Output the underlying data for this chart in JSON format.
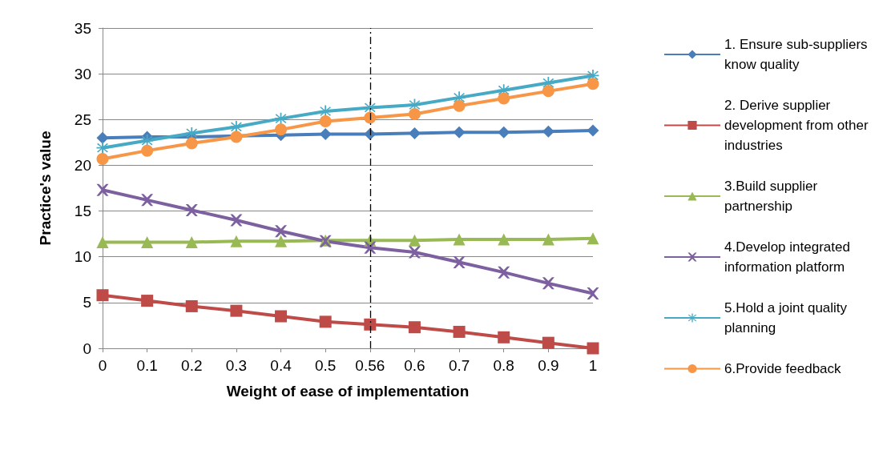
{
  "chart_data": {
    "type": "line",
    "xlabel": "Weight of ease of implementation",
    "ylabel": "Practice's value",
    "categories": [
      "0",
      "0.1",
      "0.2",
      "0.3",
      "0.4",
      "0.5",
      "0.56",
      "0.6",
      "0.7",
      "0.8",
      "0.9",
      "1"
    ],
    "ylim": [
      0,
      35
    ],
    "yticks": [
      0,
      5,
      10,
      15,
      20,
      25,
      30,
      35
    ],
    "grid": "y",
    "legend": "right",
    "series": [
      {
        "name": "1. Ensure sub-suppliers know quality",
        "color": "#4a7ebb",
        "marker": "diamond",
        "values": [
          23.0,
          23.1,
          23.1,
          23.2,
          23.3,
          23.4,
          23.4,
          23.5,
          23.6,
          23.6,
          23.7,
          23.8
        ]
      },
      {
        "name": "2. Derive supplier development from other industries",
        "color": "#be4b48",
        "marker": "square",
        "values": [
          5.8,
          5.2,
          4.6,
          4.1,
          3.5,
          2.9,
          2.6,
          2.3,
          1.8,
          1.2,
          0.6,
          0.0
        ]
      },
      {
        "name": "3.Build supplier partnership",
        "color": "#98b954",
        "marker": "triangle",
        "values": [
          11.6,
          11.6,
          11.6,
          11.7,
          11.7,
          11.8,
          11.8,
          11.8,
          11.9,
          11.9,
          11.9,
          12.0
        ]
      },
      {
        "name": "4.Develop integrated information platform",
        "color": "#7d60a0",
        "marker": "cross",
        "values": [
          17.3,
          16.2,
          15.1,
          14.0,
          12.8,
          11.7,
          11.0,
          10.5,
          9.4,
          8.3,
          7.1,
          6.0
        ]
      },
      {
        "name": "5.Hold a joint quality planning",
        "color": "#46aac5",
        "marker": "star",
        "values": [
          21.9,
          22.7,
          23.5,
          24.2,
          25.1,
          25.9,
          26.3,
          26.6,
          27.4,
          28.2,
          29.0,
          29.8
        ]
      },
      {
        "name": "6.Provide feedback",
        "color": "#f79646",
        "marker": "circle",
        "values": [
          20.7,
          21.6,
          22.4,
          23.1,
          23.9,
          24.8,
          25.2,
          25.6,
          26.5,
          27.3,
          28.1,
          28.9
        ]
      }
    ],
    "ref_lines": [
      {
        "axis": "x",
        "value": "0.56",
        "color": "#000000",
        "line_style": "dashed"
      }
    ]
  }
}
